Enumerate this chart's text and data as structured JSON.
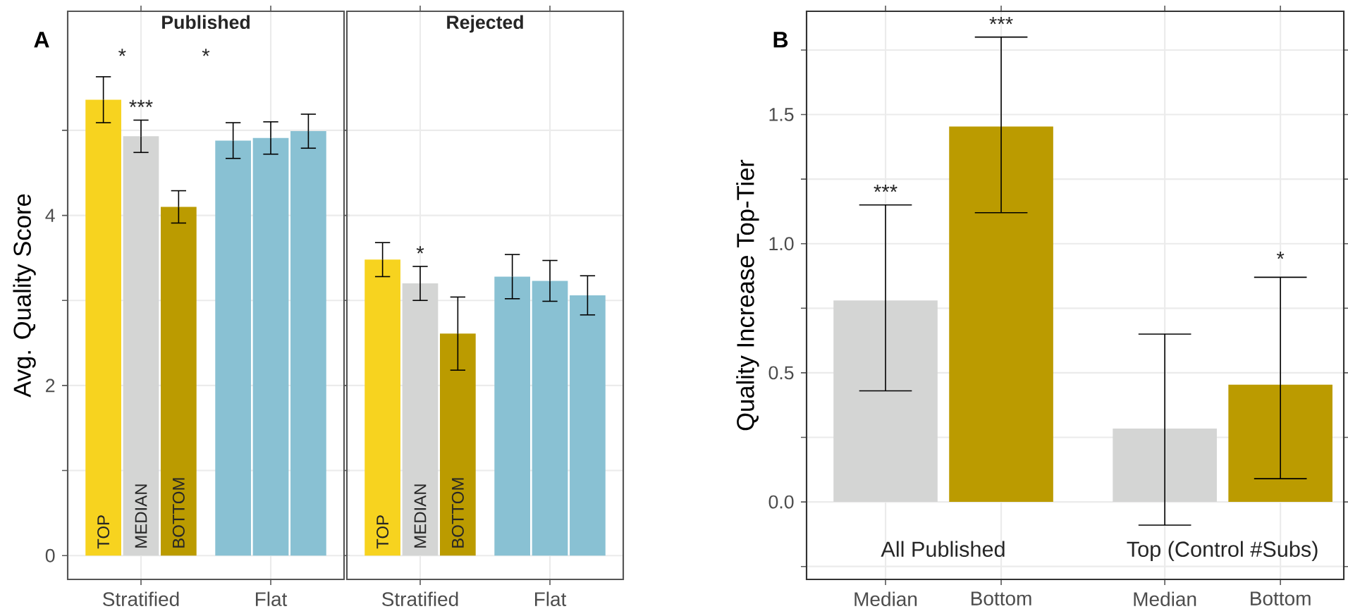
{
  "chart_data": [
    {
      "type": "bar",
      "title": "Published",
      "ylabel": "Avg. Quality Score",
      "categories": [
        "Stratified",
        "Flat"
      ],
      "series": [
        {
          "name": "TOP",
          "colors": [
            "#f7d31f",
            "#89c1d3"
          ],
          "values": [
            5.36,
            4.88
          ],
          "errors": [
            0.27,
            0.21
          ]
        },
        {
          "name": "MEDIAN",
          "colors": [
            "#d4d5d4",
            "#89c1d3"
          ],
          "values": [
            4.93,
            4.91
          ],
          "errors": [
            0.19,
            0.19
          ]
        },
        {
          "name": "BOTTOM",
          "colors": [
            "#bb9b00",
            "#89c1d3"
          ],
          "values": [
            4.1,
            4.99
          ],
          "errors": [
            0.19,
            0.2
          ]
        }
      ],
      "ylim": [
        -0.28,
        6.4
      ],
      "yticks": [
        0,
        {
          "value": 1,
          "label": null
        },
        2,
        {
          "value": 3,
          "label": null
        },
        4,
        {
          "value": 5,
          "label": null
        }
      ],
      "grid": true,
      "annotations": [
        "A",
        "*",
        "*",
        {
          "text": "***",
          "x": "Stratified",
          "y": 5.12
        }
      ]
    },
    {
      "type": "bar",
      "title": "Rejected",
      "categories": [
        "Stratified",
        "Flat"
      ],
      "series": [
        {
          "name": "TOP",
          "colors": [
            "#f7d31f",
            "#89c1d3"
          ],
          "values": [
            3.48,
            3.28
          ],
          "errors": [
            0.2,
            0.26
          ]
        },
        {
          "name": "MEDIAN",
          "colors": [
            "#d4d5d4",
            "#89c1d3"
          ],
          "values": [
            3.2,
            3.23
          ],
          "errors": [
            0.2,
            0.24
          ]
        },
        {
          "name": "BOTTOM",
          "colors": [
            "#bb9b00",
            "#89c1d3"
          ],
          "values": [
            2.61,
            3.06
          ],
          "errors": [
            0.43,
            0.23
          ]
        }
      ],
      "ylim": [
        -0.28,
        6.4
      ],
      "yticks": [
        0,
        {
          "value": 1,
          "label": null
        },
        2,
        {
          "value": 3,
          "label": null
        },
        4,
        {
          "value": 5,
          "label": null
        }
      ],
      "grid": true,
      "tick_labels": "x",
      "annotations": [
        {
          "text": "*",
          "x": "Stratified",
          "y": 3.4
        }
      ]
    },
    {
      "type": "bar",
      "ylabel": "Quality Increase Top-Tier",
      "categories": [
        "Median",
        "Bottom",
        "Median",
        "Bottom"
      ],
      "series": [
        {
          "colors": [
            "#d4d5d4",
            "#bb9b00",
            "#d4d5d4",
            "#bb9b00"
          ],
          "values": [
            0.78,
            1.454,
            0.284,
            0.454
          ],
          "errors": [
            [
              0.43,
              1.15
            ],
            [
              1.12,
              1.8
            ],
            [
              -0.09,
              0.65
            ],
            [
              0.09,
              0.87
            ]
          ]
        }
      ],
      "ylim": [
        -0.3,
        1.9
      ],
      "yticks": [
        {
          "value": -0.25,
          "label": null
        },
        {
          "value": 0,
          "label": "0.0"
        },
        {
          "value": 0.25,
          "label": null
        },
        0.5,
        {
          "value": 0.75,
          "label": null
        },
        {
          "value": 1,
          "label": "1.0"
        },
        {
          "value": 1.25,
          "label": null
        },
        1.5,
        {
          "value": 1.75,
          "label": null
        }
      ],
      "grid": true,
      "annotations": [
        "B",
        "All Published",
        "Top (Control #Subs)",
        {
          "text": "***",
          "x": "Median",
          "y": 1.15
        },
        {
          "text": "***",
          "x": "Bottom",
          "y": 1.8
        },
        "*"
      ]
    }
  ]
}
